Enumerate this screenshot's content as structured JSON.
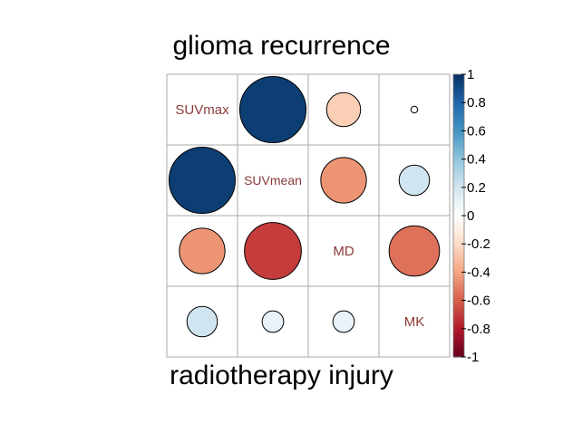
{
  "chart_data": {
    "type": "heatmap",
    "subtype": "correlation-matrix-circles",
    "title": "glioma recurrence",
    "bottom_label": "radiotherapy injury",
    "variables": [
      "SUVmax",
      "SUVmean",
      "MD",
      "MK"
    ],
    "upper_triangle_group": "glioma recurrence",
    "lower_triangle_group": "radiotherapy injury",
    "matrix": [
      [
        null,
        0.95,
        -0.25,
        0.01
      ],
      [
        0.95,
        null,
        -0.45,
        0.2
      ],
      [
        -0.45,
        -0.7,
        null,
        -0.55
      ],
      [
        0.2,
        0.1,
        0.1,
        null
      ]
    ],
    "colorbar": {
      "range": [
        -1,
        1
      ],
      "ticks": [
        "1",
        "0.8",
        "0.6",
        "0.4",
        "0.2",
        "0",
        "-0.2",
        "-0.4",
        "-0.6",
        "-0.8",
        "-1"
      ],
      "colors": {
        "pos_strong": "#053061",
        "pos_mid": "#4393c3",
        "neutral": "#ffffff",
        "neg_mid": "#f4a582",
        "neg_strong": "#67001f"
      }
    },
    "label_color": "#8b3a3a",
    "grid_color": "#aaaaaa",
    "grid": true
  }
}
